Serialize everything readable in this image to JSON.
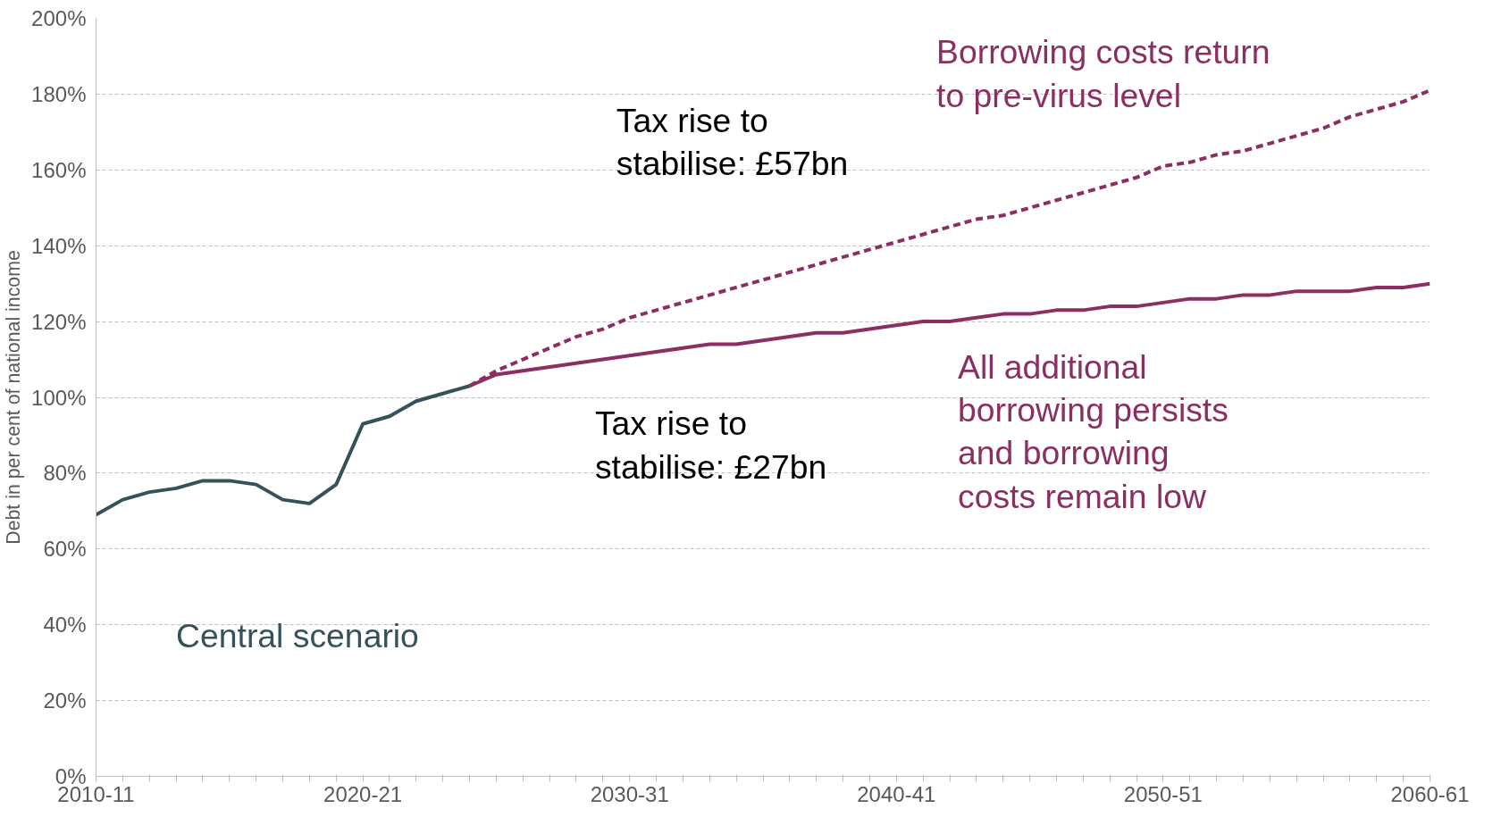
{
  "chart_data": {
    "type": "line",
    "ylabel": "Debt in per cent of national income",
    "ylim": [
      0,
      200
    ],
    "categories": [
      "2010-11",
      null,
      null,
      null,
      null,
      null,
      null,
      null,
      null,
      null,
      "2020-21",
      null,
      null,
      null,
      null,
      null,
      null,
      null,
      null,
      null,
      "2030-31",
      null,
      null,
      null,
      null,
      null,
      null,
      null,
      null,
      null,
      "2040-41",
      null,
      null,
      null,
      null,
      null,
      null,
      null,
      null,
      null,
      "2050-51",
      null,
      null,
      null,
      null,
      null,
      null,
      null,
      null,
      null,
      "2060-61"
    ],
    "yticks": [
      {
        "value": 0,
        "label": "0%"
      },
      {
        "value": 20,
        "label": "20%"
      },
      {
        "value": 40,
        "label": "40%"
      },
      {
        "value": 60,
        "label": "60%"
      },
      {
        "value": 80,
        "label": "80%"
      },
      {
        "value": 100,
        "label": "100%"
      },
      {
        "value": 120,
        "label": "120%"
      },
      {
        "value": 140,
        "label": "140%"
      },
      {
        "value": 160,
        "label": "160%"
      },
      {
        "value": 180,
        "label": "180%"
      },
      {
        "value": 200,
        "label": "200%"
      }
    ],
    "grid": "y",
    "marker": "none",
    "series": [
      {
        "name": "Central scenario",
        "color": "#35525a",
        "line_style": "solid",
        "values": [
          69,
          73,
          75,
          76,
          78,
          78,
          77,
          73,
          72,
          77,
          93,
          95,
          99,
          101,
          103,
          null,
          null,
          null,
          null,
          null,
          null,
          null,
          null,
          null,
          null,
          null,
          null,
          null,
          null,
          null,
          null,
          null,
          null,
          null,
          null,
          null,
          null,
          null,
          null,
          null,
          null,
          null,
          null,
          null,
          null,
          null,
          null,
          null,
          null,
          null,
          null
        ]
      },
      {
        "name": "Borrowing costs return to pre-virus level",
        "color": "#8b2e62",
        "line_style": "dashed",
        "values": [
          null,
          null,
          null,
          null,
          null,
          null,
          null,
          null,
          null,
          null,
          null,
          null,
          null,
          null,
          103,
          107,
          110,
          113,
          116,
          118,
          121,
          123,
          125,
          127,
          129,
          131,
          133,
          135,
          137,
          139,
          141,
          143,
          145,
          147,
          148,
          150,
          152,
          154,
          156,
          158,
          161,
          162,
          164,
          165,
          167,
          169,
          171,
          174,
          176,
          178,
          181
        ]
      },
      {
        "name": "All additional borrowing persists and borrowing costs remain low",
        "color": "#8b2e62",
        "line_style": "solid",
        "values": [
          null,
          null,
          null,
          null,
          null,
          null,
          null,
          null,
          null,
          null,
          null,
          null,
          null,
          null,
          103,
          106,
          107,
          108,
          109,
          110,
          111,
          112,
          113,
          114,
          114,
          115,
          116,
          117,
          117,
          118,
          119,
          120,
          120,
          121,
          122,
          122,
          123,
          123,
          124,
          124,
          125,
          126,
          126,
          127,
          127,
          128,
          128,
          128,
          129,
          129,
          130
        ]
      }
    ],
    "annotations": [
      "Tax rise to stabilise: £57bn",
      "Tax rise to stabilise: £27bn"
    ]
  }
}
